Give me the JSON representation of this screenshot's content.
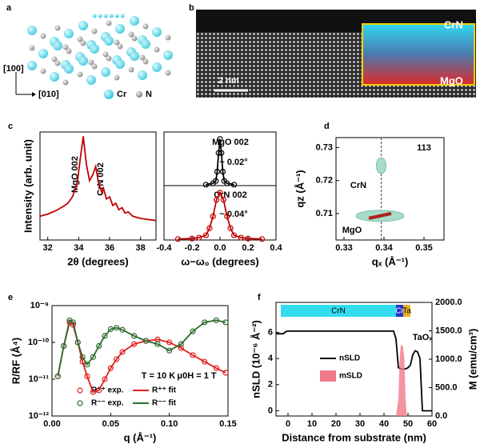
{
  "panel_a": {
    "label": "a",
    "axis_labels": [
      "[100]",
      "[010]"
    ],
    "legend": [
      "Cr",
      "N"
    ]
  },
  "panel_b": {
    "label": "b",
    "layers": [
      "CrN",
      "MgO"
    ],
    "scale_bar": "2 nm"
  },
  "chart_data": [
    {
      "type": "line",
      "panel": "c",
      "xlabel": "2θ (degrees)",
      "ylabel": "Intensity (arb. unit)",
      "annotations": [
        "MgO 002",
        "CrN 002"
      ],
      "xlim": [
        31.5,
        39
      ],
      "xticks": [
        32,
        34,
        36,
        38
      ],
      "ylim": [
        0,
        100
      ],
      "x": [
        31.5,
        32,
        32.5,
        33,
        33.3,
        33.6,
        33.9,
        34.1,
        34.3,
        34.5,
        34.7,
        34.9,
        35.1,
        35.3,
        35.5,
        35.6,
        35.8,
        36.0,
        36.2,
        36.4,
        36.6,
        36.8,
        37.0,
        37.2,
        37.5,
        38,
        38.5,
        39
      ],
      "series": [
        {
          "color": "#c00000",
          "style": "line",
          "values": [
            22,
            24,
            27,
            31,
            34,
            40,
            52,
            75,
            96,
            70,
            55,
            60,
            68,
            52,
            44,
            48,
            38,
            40,
            32,
            34,
            28,
            30,
            25,
            26,
            22,
            20,
            19,
            18
          ]
        }
      ]
    },
    {
      "type": "line",
      "annotations": [
        "MgO 002",
        "~ 0.02°"
      ],
      "xlim": [
        -0.4,
        0.4
      ],
      "ylim": [
        0,
        1.15
      ],
      "x": [
        -0.1,
        -0.05,
        -0.03,
        -0.02,
        -0.01,
        0,
        0.01,
        0.02,
        0.03,
        0.05,
        0.1
      ],
      "series": [
        {
          "color": "#000000",
          "style": "points",
          "values": [
            0.02,
            0.05,
            0.1,
            0.3,
            0.7,
            1.0,
            0.7,
            0.3,
            0.1,
            0.05,
            0.02
          ]
        },
        {
          "color": "#000000",
          "style": "line",
          "values": [
            0.02,
            0.05,
            0.1,
            0.3,
            0.7,
            1.0,
            0.7,
            0.3,
            0.1,
            0.05,
            0.02
          ]
        }
      ]
    },
    {
      "type": "line",
      "xlabel": "ω−ω₀ (degrees)",
      "annotations": [
        "CrN 002",
        "~ 0.04°"
      ],
      "xlim": [
        -0.4,
        0.4
      ],
      "xticks": [
        -0.4,
        -0.2,
        {
          "value": 0,
          "label": "0.0"
        },
        0.2,
        0.4
      ],
      "ylim": [
        0,
        1.15
      ],
      "x": [
        -0.3,
        -0.2,
        -0.15,
        -0.1,
        -0.075,
        -0.05,
        -0.025,
        0,
        0.025,
        0.05,
        0.075,
        0.1,
        0.15,
        0.2,
        0.3
      ],
      "series": [
        {
          "color": "#c00000",
          "style": "points",
          "values": [
            0.02,
            0.03,
            0.05,
            0.1,
            0.25,
            0.5,
            0.85,
            1,
            0.85,
            0.5,
            0.25,
            0.1,
            0.05,
            0.03,
            0.02
          ]
        },
        {
          "color": "#c00000",
          "style": "line",
          "values": [
            0.02,
            0.03,
            0.05,
            0.1,
            0.25,
            0.5,
            0.85,
            1,
            0.85,
            0.5,
            0.25,
            0.1,
            0.05,
            0.03,
            0.02
          ]
        }
      ]
    },
    {
      "type": "map",
      "panel": "d",
      "xlabel": "qₓ (Å⁻¹)",
      "ylabel": "qz (Å⁻¹)",
      "annotations": [
        "CrN",
        "MgO",
        "113"
      ],
      "xlim": [
        0.328,
        0.355
      ],
      "xticks": [
        0.33,
        0.34,
        0.35
      ],
      "ylim": [
        0.702,
        0.733
      ],
      "yticks": [
        0.71,
        0.72,
        0.73
      ],
      "reference_x": 0.3393,
      "color": "#a8dcc8",
      "spots": {
        "x": [
          0.3393,
          0.339
        ],
        "y": [
          0.7245,
          0.7093
        ]
      }
    },
    {
      "type": "line",
      "panel": "e",
      "log_y": true,
      "xlabel": "q (Å⁻¹)",
      "ylabel": "R/RF (Å⁴)",
      "annotations": [
        "T = 10 K",
        "μ0H = 1 T"
      ],
      "xlim": [
        0,
        0.15
      ],
      "xticks": [
        {
          "value": 0,
          "label": "0.00"
        },
        0.05,
        {
          "value": 0.1,
          "label": "0.10"
        },
        0.15
      ],
      "ylim": [
        1e-12,
        1e-09
      ],
      "yticks": [
        {
          "value": 1e-12,
          "label": "10⁻¹²"
        },
        {
          "value": 1e-11,
          "label": "10⁻¹¹"
        },
        {
          "value": 1e-10,
          "label": "10⁻¹⁰"
        },
        {
          "value": 1e-09,
          "label": "10⁻⁹"
        }
      ],
      "x": [
        0.005,
        0.01,
        0.015,
        0.018,
        0.022,
        0.026,
        0.03,
        0.035,
        0.04,
        0.045,
        0.05,
        0.055,
        0.06,
        0.07,
        0.08,
        0.09,
        0.1,
        0.11,
        0.12,
        0.13,
        0.14,
        0.148
      ],
      "series": [
        {
          "name": "R⁺⁺ exp.",
          "color": "#e02020",
          "style": "points",
          "values": [
            1.2e-11,
            8e-11,
            3.5e-10,
            3e-10,
            1e-10,
            3e-11,
            1.2e-11,
            4.5e-12,
            5e-12,
            1e-11,
            2e-11,
            3.5e-11,
            5.5e-11,
            9e-11,
            1.1e-10,
            1.2e-10,
            1e-10,
            7e-11,
            4.5e-11,
            3e-11,
            2e-11,
            1.5e-11
          ]
        },
        {
          "name": "R⁻⁻ exp.",
          "color": "#2e6b2e",
          "style": "points",
          "values": [
            1.2e-11,
            8e-11,
            4e-10,
            3.5e-10,
            1e-10,
            4e-11,
            2.5e-11,
            4e-11,
            8e-11,
            1.5e-10,
            2.3e-10,
            2.5e-10,
            2.2e-10,
            1.5e-10,
            1.1e-10,
            9e-11,
            6e-11,
            9e-11,
            2e-10,
            3.5e-10,
            4e-10,
            3.5e-10
          ]
        },
        {
          "name": "R⁺⁺ fit",
          "color": "#e02020",
          "style": "line",
          "values": [
            1.2e-11,
            8e-11,
            3.5e-10,
            3e-10,
            1e-10,
            3e-11,
            1.2e-11,
            4.5e-12,
            5e-12,
            1e-11,
            2e-11,
            3.5e-11,
            5.5e-11,
            9e-11,
            1.1e-10,
            1.2e-10,
            1e-10,
            7e-11,
            4.5e-11,
            3e-11,
            2e-11,
            1.5e-11
          ]
        },
        {
          "name": "R⁻⁻ fit",
          "color": "#2e6b2e",
          "style": "line",
          "values": [
            1.2e-11,
            8e-11,
            4e-10,
            3.5e-10,
            1e-10,
            4e-11,
            2.5e-11,
            4e-11,
            8e-11,
            1.5e-10,
            2.3e-10,
            2.5e-10,
            2.2e-10,
            1.5e-10,
            1.1e-10,
            9e-11,
            6e-11,
            9e-11,
            2e-10,
            3.5e-10,
            4e-10,
            3.5e-10
          ]
        }
      ]
    },
    {
      "type": "line",
      "panel": "f",
      "xlabel": "Distance from substrate (nm)",
      "ylabel": "nSLD (10⁻⁶ Å⁻²)",
      "y2label": "M (emu/cm³)",
      "annotations": [
        "TaOₓ"
      ],
      "xlim": [
        -5,
        60
      ],
      "xticks": [
        0,
        10,
        20,
        30,
        40,
        50,
        60
      ],
      "ylim": [
        -0.4,
        8.3
      ],
      "yticks": [
        0,
        2,
        4,
        6
      ],
      "y2lim": [
        0,
        2000
      ],
      "y2ticks": [
        {
          "value": 0,
          "label": "0.0"
        },
        {
          "value": 500,
          "label": "500.0"
        },
        {
          "value": 1000,
          "label": "1000.0"
        },
        {
          "value": 1500,
          "label": "1500.0"
        },
        {
          "value": 2000,
          "label": "2000.0"
        }
      ],
      "layers": [
        {
          "label": "CrN",
          "start": -3,
          "end": 45,
          "color": "#33ddee"
        },
        {
          "label": "Cr",
          "start": 45,
          "end": 48,
          "color": "#2233cc"
        },
        {
          "label": "Ta",
          "start": 48,
          "end": 51,
          "color": "#f0b020"
        }
      ],
      "series": [
        {
          "name": "nSLD",
          "color": "#000000",
          "style": "line",
          "x": [
            -5,
            -2,
            -1,
            0,
            44,
            45,
            46,
            47,
            48,
            49,
            50,
            51,
            52,
            53,
            54,
            55,
            56,
            60
          ],
          "values": [
            5.9,
            5.9,
            6.05,
            6.1,
            6.1,
            5.5,
            3.3,
            3.2,
            3.2,
            3.2,
            3.3,
            3.5,
            4.3,
            4.6,
            4.5,
            4.0,
            0,
            0
          ]
        },
        {
          "name": "mSLD",
          "color": "#f07a8a",
          "style": "area",
          "axis": "y2",
          "x": [
            45,
            46,
            46.5,
            47,
            47.5,
            48,
            48.5,
            49,
            49.5
          ],
          "values": [
            0,
            300,
            1000,
            1250,
            1250,
            1200,
            1000,
            300,
            0
          ]
        }
      ]
    }
  ]
}
